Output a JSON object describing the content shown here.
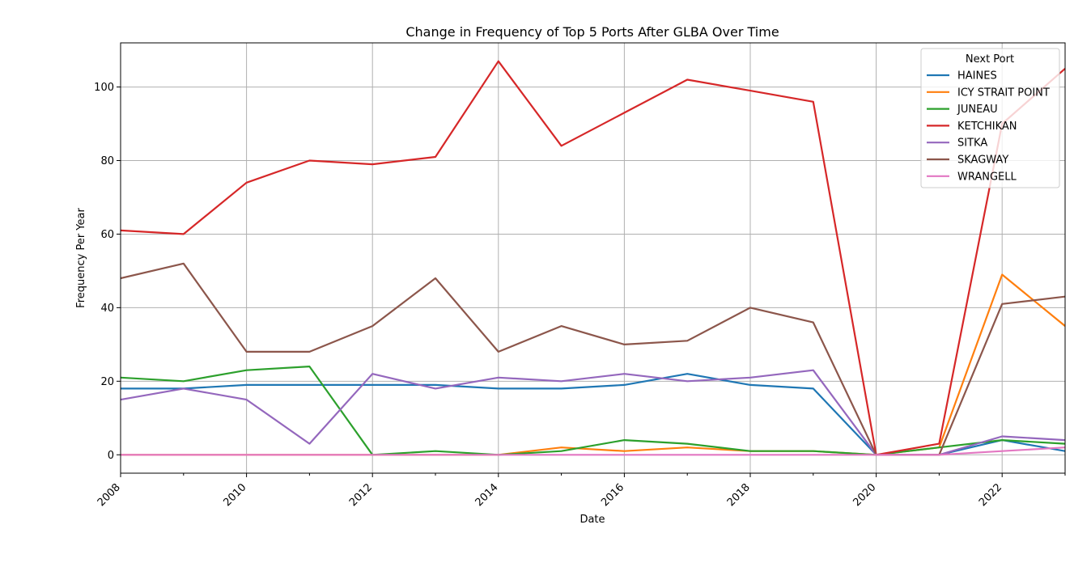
{
  "chart_data": {
    "type": "line",
    "title": "Change in Frequency of Top 5 Ports After GLBA Over Time",
    "xlabel": "Date",
    "ylabel": "Frequency Per Year",
    "x": [
      2008,
      2009,
      2010,
      2011,
      2012,
      2013,
      2014,
      2015,
      2016,
      2017,
      2018,
      2019,
      2020,
      2021,
      2022,
      2023
    ],
    "xlim": [
      2008,
      2023
    ],
    "ylim": [
      -5,
      112
    ],
    "x_ticks": [
      "2008",
      "2010",
      "2012",
      "2014",
      "2016",
      "2018",
      "2020",
      "2022"
    ],
    "y_ticks": [
      "0",
      "20",
      "40",
      "60",
      "80",
      "100"
    ],
    "grid": true,
    "legend": {
      "title": "Next Port",
      "placement": "top-right"
    },
    "series": [
      {
        "name": "HAINES",
        "color": "#1f77b4",
        "values": [
          18,
          18,
          19,
          19,
          19,
          19,
          18,
          18,
          19,
          22,
          19,
          18,
          0,
          0,
          4,
          1
        ]
      },
      {
        "name": "ICY STRAIT POINT",
        "color": "#ff7f0e",
        "values": [
          0,
          0,
          0,
          0,
          0,
          0,
          0,
          2,
          1,
          2,
          1,
          1,
          0,
          2,
          49,
          35
        ]
      },
      {
        "name": "JUNEAU",
        "color": "#2ca02c",
        "values": [
          21,
          20,
          23,
          24,
          0,
          1,
          0,
          1,
          4,
          3,
          1,
          1,
          0,
          2,
          4,
          3
        ]
      },
      {
        "name": "KETCHIKAN",
        "color": "#d62728",
        "values": [
          61,
          60,
          74,
          80,
          79,
          81,
          107,
          84,
          93,
          102,
          99,
          96,
          0,
          3,
          90,
          105
        ]
      },
      {
        "name": "SITKA",
        "color": "#9467bd",
        "values": [
          15,
          18,
          15,
          3,
          22,
          18,
          21,
          20,
          22,
          20,
          21,
          23,
          0,
          0,
          5,
          4
        ]
      },
      {
        "name": "SKAGWAY",
        "color": "#8c564b",
        "values": [
          48,
          52,
          28,
          28,
          35,
          48,
          28,
          35,
          30,
          31,
          40,
          36,
          0,
          0,
          41,
          43
        ]
      },
      {
        "name": "WRANGELL",
        "color": "#e377c2",
        "values": [
          0,
          0,
          0,
          0,
          0,
          0,
          0,
          0,
          0,
          0,
          0,
          0,
          0,
          0,
          1,
          2
        ]
      }
    ]
  }
}
